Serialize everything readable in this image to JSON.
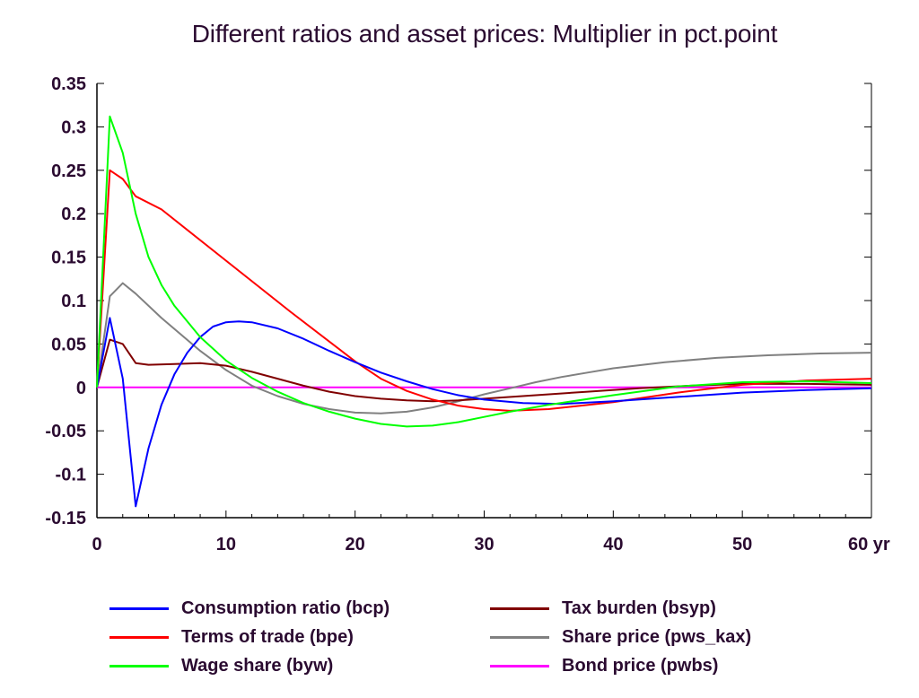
{
  "chart_data": {
    "type": "line",
    "title": "Different ratios and asset prices: Multiplier in pct.point",
    "xlabel": "",
    "ylabel": "",
    "x_unit": "yr",
    "xlim": [
      0,
      60
    ],
    "ylim": [
      -0.15,
      0.35
    ],
    "x_ticks": [
      "0",
      "10",
      "20",
      "30",
      "40",
      "50",
      "60 yr"
    ],
    "y_ticks": [
      "0.35",
      "0.3",
      "0.25",
      "0.2",
      "0.15",
      "0.1",
      "0.05",
      "0",
      "-0.05",
      "-0.1",
      "-0.15"
    ],
    "grid": false,
    "legend_position": "bottom",
    "series": [
      {
        "name": "Consumption ratio (bcp)",
        "color": "#0000ff",
        "points": [
          [
            0,
            0
          ],
          [
            1,
            0.08
          ],
          [
            2,
            0.01
          ],
          [
            3,
            -0.137
          ],
          [
            4,
            -0.07
          ],
          [
            5,
            -0.02
          ],
          [
            6,
            0.015
          ],
          [
            7,
            0.04
          ],
          [
            8,
            0.058
          ],
          [
            9,
            0.07
          ],
          [
            10,
            0.075
          ],
          [
            11,
            0.076
          ],
          [
            12,
            0.075
          ],
          [
            14,
            0.068
          ],
          [
            16,
            0.056
          ],
          [
            18,
            0.042
          ],
          [
            20,
            0.029
          ],
          [
            22,
            0.017
          ],
          [
            24,
            0.007
          ],
          [
            26,
            -0.002
          ],
          [
            28,
            -0.009
          ],
          [
            30,
            -0.014
          ],
          [
            33,
            -0.018
          ],
          [
            36,
            -0.019
          ],
          [
            40,
            -0.016
          ],
          [
            45,
            -0.011
          ],
          [
            50,
            -0.006
          ],
          [
            55,
            -0.003
          ],
          [
            60,
            -0.001
          ]
        ]
      },
      {
        "name": "Terms of trade (bpe)",
        "color": "#ff0000",
        "points": [
          [
            0,
            0
          ],
          [
            1,
            0.25
          ],
          [
            2,
            0.24
          ],
          [
            3,
            0.22
          ],
          [
            5,
            0.205
          ],
          [
            10,
            0.146
          ],
          [
            15,
            0.087
          ],
          [
            20,
            0.03
          ],
          [
            22,
            0.01
          ],
          [
            24,
            -0.004
          ],
          [
            26,
            -0.014
          ],
          [
            28,
            -0.021
          ],
          [
            30,
            -0.025
          ],
          [
            32,
            -0.027
          ],
          [
            35,
            -0.025
          ],
          [
            40,
            -0.017
          ],
          [
            45,
            -0.006
          ],
          [
            50,
            0.003
          ],
          [
            55,
            0.008
          ],
          [
            60,
            0.01
          ]
        ]
      },
      {
        "name": "Wage share (byw)",
        "color": "#00ff00",
        "points": [
          [
            0,
            0
          ],
          [
            1,
            0.312
          ],
          [
            2,
            0.27
          ],
          [
            3,
            0.2
          ],
          [
            4,
            0.15
          ],
          [
            5,
            0.118
          ],
          [
            6,
            0.094
          ],
          [
            8,
            0.058
          ],
          [
            10,
            0.031
          ],
          [
            12,
            0.011
          ],
          [
            14,
            -0.005
          ],
          [
            16,
            -0.018
          ],
          [
            18,
            -0.028
          ],
          [
            20,
            -0.036
          ],
          [
            22,
            -0.042
          ],
          [
            24,
            -0.045
          ],
          [
            26,
            -0.044
          ],
          [
            28,
            -0.04
          ],
          [
            30,
            -0.034
          ],
          [
            32,
            -0.028
          ],
          [
            35,
            -0.02
          ],
          [
            40,
            -0.009
          ],
          [
            45,
            0.001
          ],
          [
            50,
            0.006
          ],
          [
            55,
            0.007
          ],
          [
            60,
            0.005
          ]
        ]
      },
      {
        "name": "Tax burden (bsyp)",
        "color": "#800000",
        "points": [
          [
            0,
            0
          ],
          [
            1,
            0.055
          ],
          [
            2,
            0.05
          ],
          [
            3,
            0.028
          ],
          [
            4,
            0.026
          ],
          [
            6,
            0.027
          ],
          [
            8,
            0.028
          ],
          [
            10,
            0.025
          ],
          [
            12,
            0.018
          ],
          [
            14,
            0.01
          ],
          [
            16,
            0.002
          ],
          [
            18,
            -0.005
          ],
          [
            20,
            -0.01
          ],
          [
            22,
            -0.013
          ],
          [
            24,
            -0.015
          ],
          [
            26,
            -0.016
          ],
          [
            28,
            -0.015
          ],
          [
            30,
            -0.013
          ],
          [
            34,
            -0.009
          ],
          [
            38,
            -0.005
          ],
          [
            42,
            -0.001
          ],
          [
            46,
            0.002
          ],
          [
            50,
            0.004
          ],
          [
            55,
            0.004
          ],
          [
            60,
            0.003
          ]
        ]
      },
      {
        "name": "Share price (pws_kax)",
        "color": "#808080",
        "points": [
          [
            0,
            0
          ],
          [
            1,
            0.105
          ],
          [
            2,
            0.12
          ],
          [
            3,
            0.108
          ],
          [
            5,
            0.08
          ],
          [
            8,
            0.042
          ],
          [
            10,
            0.02
          ],
          [
            12,
            0.002
          ],
          [
            14,
            -0.01
          ],
          [
            16,
            -0.019
          ],
          [
            18,
            -0.025
          ],
          [
            20,
            -0.029
          ],
          [
            22,
            -0.03
          ],
          [
            24,
            -0.028
          ],
          [
            26,
            -0.023
          ],
          [
            28,
            -0.016
          ],
          [
            30,
            -0.008
          ],
          [
            32,
            -0.001
          ],
          [
            34,
            0.006
          ],
          [
            36,
            0.012
          ],
          [
            38,
            0.017
          ],
          [
            40,
            0.022
          ],
          [
            44,
            0.029
          ],
          [
            48,
            0.034
          ],
          [
            52,
            0.037
          ],
          [
            56,
            0.039
          ],
          [
            60,
            0.04
          ]
        ]
      },
      {
        "name": "Bond price (pwbs)",
        "color": "#ff00ff",
        "points": [
          [
            0,
            0
          ],
          [
            60,
            0
          ]
        ]
      }
    ]
  }
}
